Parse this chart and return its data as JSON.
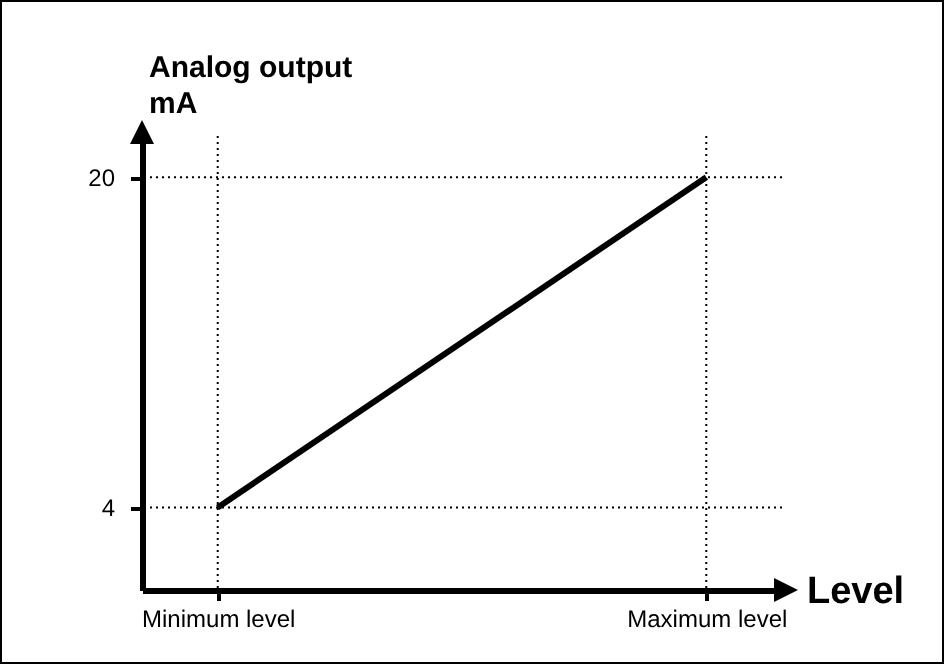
{
  "chart_data": {
    "type": "line",
    "xlabel": "Level",
    "ylabel": "Analog output\nmA",
    "categories": [
      "Minimum level",
      "Maximum level"
    ],
    "series": [
      {
        "color": "#000000",
        "values": [
          4,
          20
        ]
      }
    ],
    "ylim": [
      0,
      22
    ],
    "yticks": [
      4,
      20
    ],
    "grid": false,
    "ref_lines": [
      {
        "axis": "x",
        "value": "Minimum level",
        "color": "#000000",
        "line_style": "dotted"
      },
      {
        "axis": "x",
        "value": "Maximum level",
        "color": "#000000",
        "line_style": "dotted"
      },
      {
        "axis": "y",
        "value": 4,
        "color": "#000000",
        "line_style": "dotted"
      },
      {
        "axis": "y",
        "value": 20,
        "color": "#000000",
        "line_style": "dotted"
      }
    ]
  }
}
